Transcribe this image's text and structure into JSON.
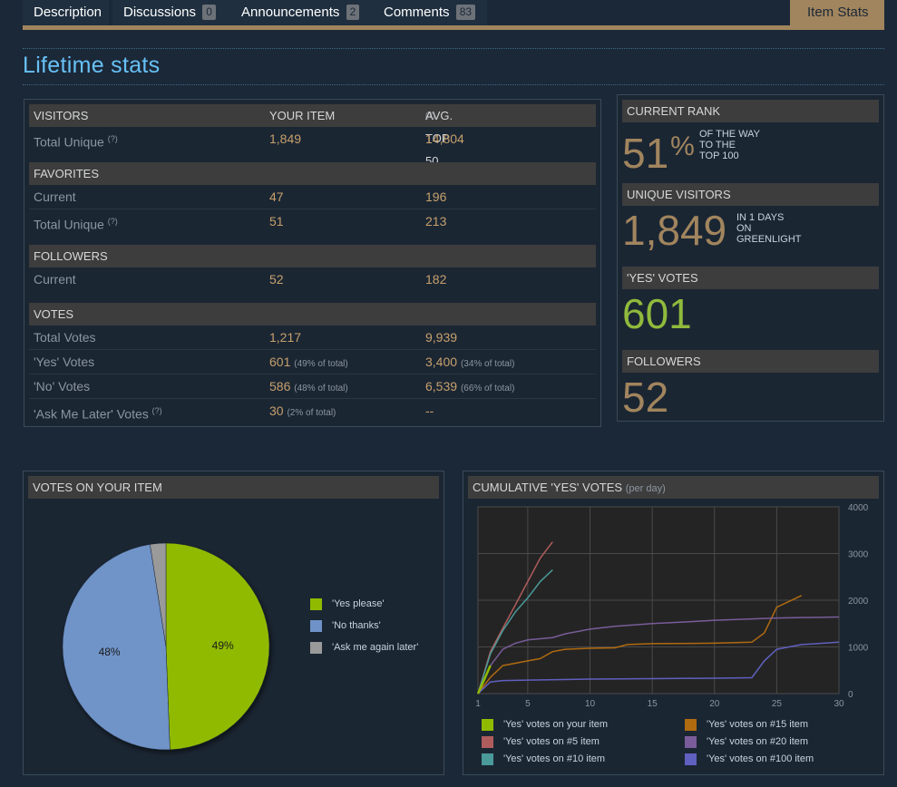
{
  "tabs": [
    {
      "label": "Description",
      "count": null
    },
    {
      "label": "Discussions",
      "count": "0"
    },
    {
      "label": "Announcements",
      "count": "2"
    },
    {
      "label": "Comments",
      "count": "83"
    }
  ],
  "active_tab": "Item Stats",
  "page_title": "Lifetime stats",
  "table": {
    "col_your_item": "YOUR ITEM",
    "col_avg": "AVG. TOP 50",
    "help": "(?)",
    "visitors": {
      "header": "VISITORS",
      "rows": [
        {
          "label": "Total Unique",
          "your": "1,849",
          "avg": "14,804"
        }
      ]
    },
    "favorites": {
      "header": "FAVORITES",
      "rows": [
        {
          "label": "Current",
          "your": "47",
          "avg": "196"
        },
        {
          "label": "Total Unique",
          "your": "51",
          "avg": "213"
        }
      ]
    },
    "followers": {
      "header": "FOLLOWERS",
      "rows": [
        {
          "label": "Current",
          "your": "52",
          "avg": "182"
        }
      ]
    },
    "votes": {
      "header": "VOTES",
      "rows": [
        {
          "label": "Total Votes",
          "your": "1,217",
          "your_pct": "",
          "avg": "9,939",
          "avg_pct": ""
        },
        {
          "label": "'Yes' Votes",
          "your": "601",
          "your_pct": "(49% of total)",
          "avg": "3,400",
          "avg_pct": "(34% of total)"
        },
        {
          "label": "'No' Votes",
          "your": "586",
          "your_pct": "(48% of total)",
          "avg": "6,539",
          "avg_pct": "(66% of total)"
        },
        {
          "label": "'Ask Me Later' Votes",
          "your": "30",
          "your_pct": "(2% of total)",
          "avg": "--",
          "avg_pct": ""
        }
      ]
    }
  },
  "summary": {
    "rank": {
      "header": "CURRENT RANK",
      "value": "51",
      "unit": "%",
      "note1": "OF THE WAY",
      "note2": "TO THE",
      "note3": "TOP 100"
    },
    "visitors": {
      "header": "UNIQUE VISITORS",
      "value": "1,849",
      "note1": "IN 1 DAYS",
      "note2": "ON",
      "note3": "GREENLIGHT"
    },
    "yes_votes": {
      "header": "'YES' VOTES",
      "value": "601"
    },
    "followers": {
      "header": "FOLLOWERS",
      "value": "52"
    }
  },
  "pie_panel": {
    "title": "VOTES ON YOUR ITEM"
  },
  "line_panel": {
    "title": "CUMULATIVE 'YES' VOTES",
    "subtitle": "(per day)"
  },
  "colors": {
    "accent": "#a1855e",
    "title_blue": "#67c1f5",
    "yes": "#90ba00",
    "no": "#6f93c8",
    "later": "#9a9a9a",
    "top5": "#b05c5c",
    "top10": "#4a9a9a",
    "top15": "#b06a10",
    "top20": "#7a5c9a",
    "top100": "#6060c0"
  },
  "chart_data": [
    {
      "type": "pie",
      "title": "VOTES ON YOUR ITEM",
      "categories": [
        "'Yes please'",
        "'No thanks'",
        "'Ask me again later'"
      ],
      "values": [
        601,
        586,
        30
      ],
      "labels": [
        "49%",
        "48%",
        ""
      ]
    },
    {
      "type": "line",
      "title": "CUMULATIVE 'YES' VOTES",
      "subtitle": "(per day)",
      "xlim": [
        1,
        30
      ],
      "ylim": [
        0,
        4000
      ],
      "x_ticks": [
        1,
        5,
        10,
        15,
        20,
        25,
        30
      ],
      "y_ticks": [
        0,
        1000,
        2000,
        3000,
        4000
      ],
      "series": [
        {
          "name": "'Yes' votes on your item",
          "color": "#90ba00",
          "x": [
            1,
            1.5,
            2
          ],
          "y": [
            0,
            300,
            601
          ]
        },
        {
          "name": "'Yes' votes on #5 item",
          "color": "#b05c5c",
          "x": [
            1,
            2,
            3,
            4,
            5,
            6,
            7
          ],
          "y": [
            0,
            900,
            1400,
            1900,
            2400,
            2900,
            3250
          ]
        },
        {
          "name": "'Yes' votes on #10 item",
          "color": "#4a9a9a",
          "x": [
            1,
            2,
            3,
            4,
            5,
            6,
            7
          ],
          "y": [
            0,
            850,
            1350,
            1750,
            2050,
            2400,
            2650
          ]
        },
        {
          "name": "'Yes' votes on #15 item",
          "color": "#b06a10",
          "x": [
            1,
            2,
            3,
            5,
            6,
            7,
            8,
            10,
            12,
            13,
            15,
            20,
            23,
            24,
            25,
            27
          ],
          "y": [
            0,
            350,
            600,
            700,
            750,
            900,
            950,
            970,
            980,
            1050,
            1070,
            1080,
            1100,
            1300,
            1850,
            2100
          ]
        },
        {
          "name": "'Yes' votes on #20 item",
          "color": "#7a5c9a",
          "x": [
            1,
            2,
            3,
            4,
            5,
            7,
            8,
            10,
            12,
            15,
            18,
            20,
            25,
            30
          ],
          "y": [
            0,
            600,
            950,
            1080,
            1150,
            1200,
            1280,
            1380,
            1440,
            1500,
            1540,
            1570,
            1620,
            1640
          ]
        },
        {
          "name": "'Yes' votes on #100 item",
          "color": "#6060c0",
          "x": [
            1,
            2,
            3,
            5,
            10,
            15,
            20,
            23,
            24,
            25,
            27,
            30
          ],
          "y": [
            0,
            250,
            280,
            290,
            310,
            320,
            330,
            340,
            700,
            950,
            1050,
            1100
          ]
        }
      ]
    }
  ]
}
